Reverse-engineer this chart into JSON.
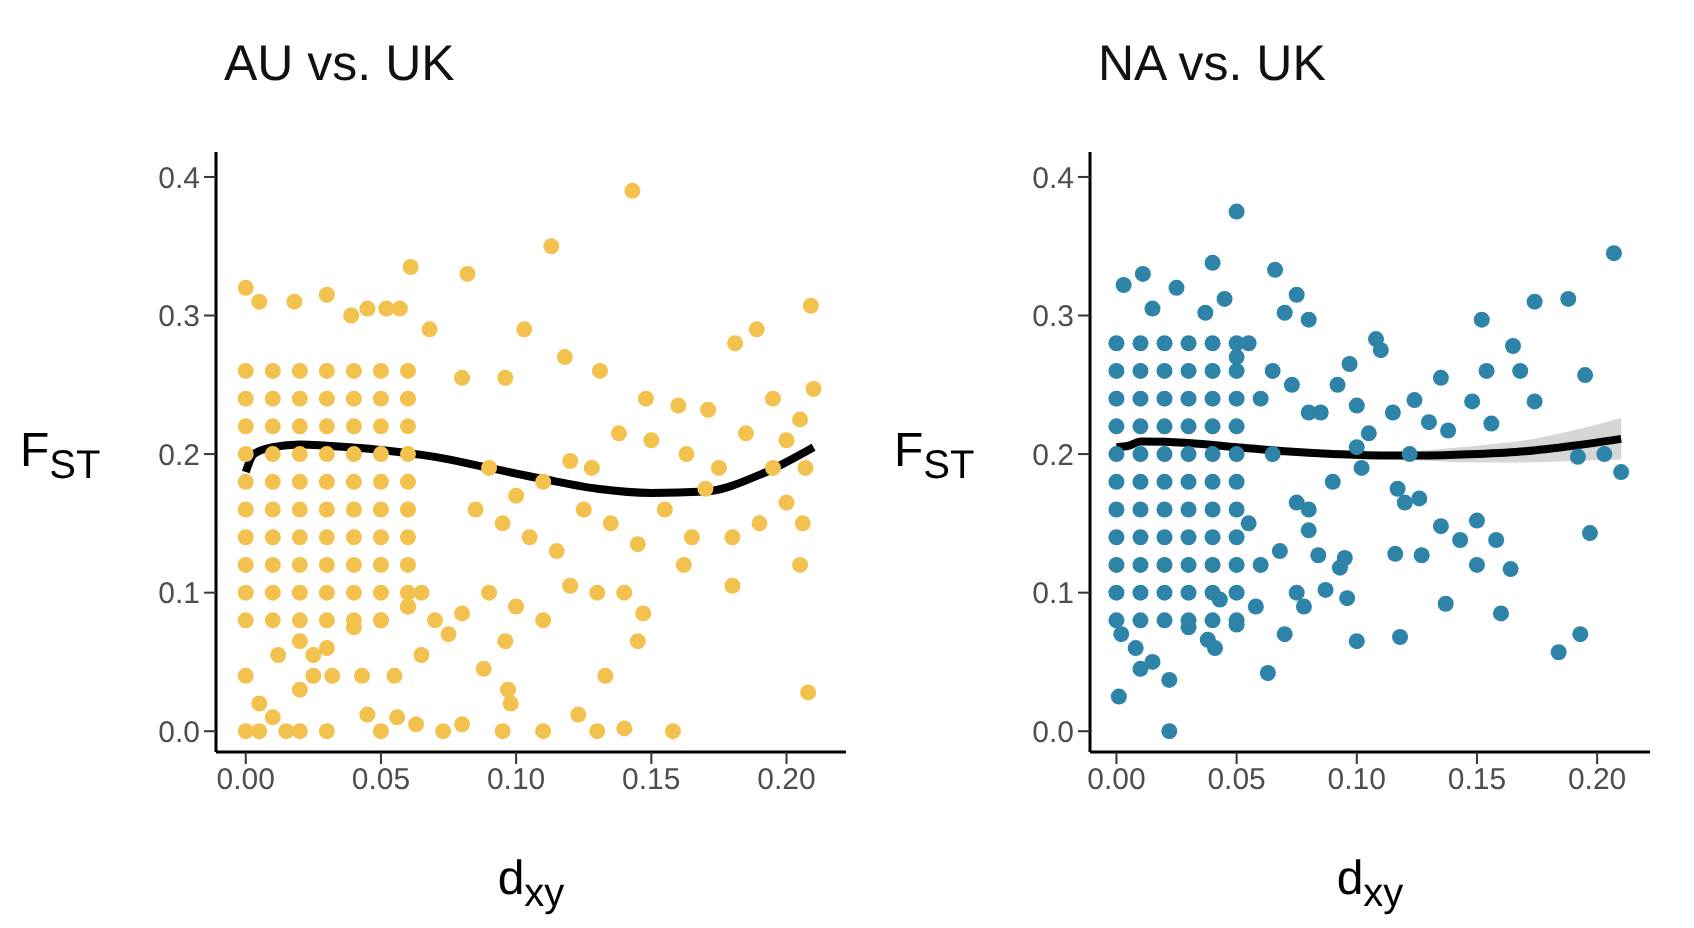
{
  "chart_data": [
    {
      "type": "scatter",
      "title": "AU vs. UK",
      "xlabel": "d$_{xy}$",
      "ylabel": "F$_{ST}$",
      "xlim": [
        -0.011,
        0.222
      ],
      "ylim": [
        -0.015,
        0.418
      ],
      "xticks": [
        {
          "value": 0,
          "label": "0.00"
        },
        {
          "value": 0.05,
          "label": "0.05"
        },
        {
          "value": 0.1,
          "label": "0.10"
        },
        {
          "value": 0.15,
          "label": "0.15"
        },
        {
          "value": 0.2,
          "label": "0.20"
        }
      ],
      "yticks": [
        {
          "value": 0,
          "label": "0.0"
        },
        {
          "value": 0.1,
          "label": "0.1"
        },
        {
          "value": 0.2,
          "label": "0.2"
        },
        {
          "value": 0.3,
          "label": "0.3"
        },
        {
          "value": 0.4,
          "label": "0.4"
        }
      ],
      "grid": false,
      "series": [
        {
          "marker": "circle",
          "color": "#f2c14e",
          "x": [
            0.143,
            0.113,
            0.082,
            0.061,
            0.0,
            0.03,
            0.005,
            0.018,
            0.045,
            0.052,
            0.057,
            0.039,
            0.209,
            0.103,
            0.189,
            0.181,
            0.118,
            0.068,
            0.08,
            0.096,
            0.131,
            0.148,
            0.16,
            0.171,
            0.195,
            0.21,
            0.185,
            0.2,
            0.205,
            0.195,
            0.175,
            0.163,
            0.15,
            0.138,
            0.128,
            0.12,
            0.11,
            0.1,
            0.09,
            0.085,
            0.095,
            0.105,
            0.115,
            0.125,
            0.135,
            0.145,
            0.155,
            0.165,
            0.17,
            0.18,
            0.19,
            0.2,
            0.207,
            0.206,
            0.205,
            0.18,
            0.162,
            0.147,
            0.145,
            0.14,
            0.13,
            0.12,
            0.11,
            0.1,
            0.09,
            0.08,
            0.075,
            0.065,
            0.07,
            0.096,
            0.088,
            0.097,
            0.098,
            0.133,
            0.123,
            0.14,
            0.158,
            0.208,
            0.13,
            0.11,
            0.095,
            0.08,
            0.073,
            0.063,
            0.056,
            0.05,
            0.045,
            0.043,
            0.055,
            0.032,
            0.025,
            0.0,
            0.005,
            0.01,
            0.015,
            0.02,
            0.03,
            0.005,
            0.0,
            0.02,
            0.025,
            0.012,
            0.02,
            0.03,
            0.04,
            0.05,
            0.06,
            0.065,
            0.0,
            0.0,
            0.0,
            0.0,
            0.0,
            0.0,
            0.0,
            0.0,
            0.0,
            0.0,
            0.01,
            0.01,
            0.01,
            0.01,
            0.01,
            0.01,
            0.01,
            0.01,
            0.01,
            0.01,
            0.02,
            0.02,
            0.02,
            0.02,
            0.02,
            0.02,
            0.02,
            0.02,
            0.02,
            0.02,
            0.03,
            0.03,
            0.03,
            0.03,
            0.03,
            0.03,
            0.03,
            0.03,
            0.03,
            0.03,
            0.04,
            0.04,
            0.04,
            0.04,
            0.04,
            0.04,
            0.04,
            0.04,
            0.04,
            0.04,
            0.05,
            0.05,
            0.05,
            0.05,
            0.05,
            0.05,
            0.05,
            0.05,
            0.05,
            0.05,
            0.06,
            0.06,
            0.06,
            0.06,
            0.06,
            0.06,
            0.06,
            0.06,
            0.06,
            0.06
          ],
          "values": [
            0.39,
            0.35,
            0.33,
            0.335,
            0.32,
            0.315,
            0.31,
            0.31,
            0.305,
            0.305,
            0.305,
            0.3,
            0.307,
            0.29,
            0.29,
            0.28,
            0.27,
            0.29,
            0.255,
            0.255,
            0.26,
            0.24,
            0.235,
            0.232,
            0.24,
            0.247,
            0.215,
            0.21,
            0.225,
            0.19,
            0.19,
            0.2,
            0.21,
            0.215,
            0.19,
            0.195,
            0.18,
            0.17,
            0.19,
            0.16,
            0.15,
            0.14,
            0.13,
            0.16,
            0.15,
            0.135,
            0.16,
            0.14,
            0.175,
            0.14,
            0.15,
            0.165,
            0.19,
            0.15,
            0.12,
            0.105,
            0.12,
            0.085,
            0.065,
            0.1,
            0.1,
            0.105,
            0.08,
            0.09,
            0.1,
            0.085,
            0.07,
            0.055,
            0.08,
            0.065,
            0.045,
            0.03,
            0.02,
            0.04,
            0.012,
            0.002,
            0.0,
            0.028,
            0.0,
            0.0,
            0.0,
            0.005,
            0.0,
            0.005,
            0.01,
            0.0,
            0.012,
            0.04,
            0.04,
            0.04,
            0.04,
            0.04,
            0.02,
            0.01,
            0.0,
            0.0,
            0.0,
            0.0,
            0.0,
            0.03,
            0.055,
            0.055,
            0.065,
            0.06,
            0.075,
            0.08,
            0.09,
            0.1,
            0.08,
            0.1,
            0.12,
            0.14,
            0.16,
            0.18,
            0.2,
            0.22,
            0.24,
            0.26,
            0.08,
            0.1,
            0.12,
            0.14,
            0.16,
            0.18,
            0.2,
            0.22,
            0.24,
            0.26,
            0.08,
            0.1,
            0.12,
            0.14,
            0.16,
            0.18,
            0.2,
            0.22,
            0.24,
            0.26,
            0.08,
            0.1,
            0.12,
            0.14,
            0.16,
            0.18,
            0.2,
            0.22,
            0.24,
            0.26,
            0.08,
            0.1,
            0.12,
            0.14,
            0.16,
            0.18,
            0.2,
            0.22,
            0.24,
            0.26,
            0.08,
            0.1,
            0.12,
            0.14,
            0.16,
            0.18,
            0.2,
            0.22,
            0.24,
            0.26,
            0.09,
            0.1,
            0.12,
            0.14,
            0.16,
            0.18,
            0.2,
            0.22,
            0.24,
            0.26
          ]
        },
        {
          "type": "line",
          "color": "#000000",
          "x": [
            0,
            0.003,
            0.01,
            0.02,
            0.03,
            0.05,
            0.07,
            0.09,
            0.11,
            0.13,
            0.15,
            0.17,
            0.19,
            0.21
          ],
          "values": [
            0.187,
            0.2,
            0.205,
            0.207,
            0.206,
            0.203,
            0.198,
            0.19,
            0.182,
            0.175,
            0.172,
            0.173,
            0.185,
            0.205
          ]
        }
      ]
    },
    {
      "type": "scatter",
      "title": "NA vs. UK",
      "xlabel": "d$_{xy}$",
      "ylabel": "F$_{ST}$",
      "xlim": [
        -0.011,
        0.222
      ],
      "ylim": [
        -0.015,
        0.418
      ],
      "xticks": [
        {
          "value": 0,
          "label": "0.00"
        },
        {
          "value": 0.05,
          "label": "0.05"
        },
        {
          "value": 0.1,
          "label": "0.10"
        },
        {
          "value": 0.15,
          "label": "0.15"
        },
        {
          "value": 0.2,
          "label": "0.20"
        }
      ],
      "yticks": [
        {
          "value": 0,
          "label": "0.0"
        },
        {
          "value": 0.1,
          "label": "0.1"
        },
        {
          "value": 0.2,
          "label": "0.2"
        },
        {
          "value": 0.3,
          "label": "0.3"
        },
        {
          "value": 0.4,
          "label": "0.4"
        }
      ],
      "grid": false,
      "series": [
        {
          "marker": "circle",
          "color": "#2e83a8",
          "x": [
            0.05,
            0.207,
            0.04,
            0.066,
            0.003,
            0.011,
            0.025,
            0.045,
            0.075,
            0.07,
            0.08,
            0.037,
            0.015,
            0.188,
            0.174,
            0.152,
            0.11,
            0.108,
            0.154,
            0.165,
            0.168,
            0.195,
            0.174,
            0.148,
            0.135,
            0.124,
            0.13,
            0.138,
            0.156,
            0.115,
            0.1,
            0.105,
            0.092,
            0.097,
            0.1,
            0.09,
            0.102,
            0.12,
            0.117,
            0.122,
            0.126,
            0.15,
            0.135,
            0.143,
            0.158,
            0.15,
            0.164,
            0.16,
            0.137,
            0.127,
            0.116,
            0.118,
            0.1,
            0.096,
            0.095,
            0.093,
            0.084,
            0.087,
            0.08,
            0.08,
            0.078,
            0.075,
            0.07,
            0.063,
            0.058,
            0.05,
            0.043,
            0.038,
            0.041,
            0.03,
            0.022,
            0.022,
            0.01,
            0.015,
            0.008,
            0.001,
            0.002,
            0.203,
            0.21,
            0.197,
            0.192,
            0.193,
            0.184,
            0.075,
            0.068,
            0.06,
            0.055,
            0.065,
            0.06,
            0.065,
            0.073,
            0.055,
            0.05,
            0.08,
            0.085,
            0.0,
            0.0,
            0.0,
            0.0,
            0.0,
            0.0,
            0.0,
            0.0,
            0.0,
            0.0,
            0.0,
            0.01,
            0.01,
            0.01,
            0.01,
            0.01,
            0.01,
            0.01,
            0.01,
            0.01,
            0.01,
            0.01,
            0.02,
            0.02,
            0.02,
            0.02,
            0.02,
            0.02,
            0.02,
            0.02,
            0.02,
            0.02,
            0.02,
            0.03,
            0.03,
            0.03,
            0.03,
            0.03,
            0.03,
            0.03,
            0.03,
            0.03,
            0.03,
            0.03,
            0.04,
            0.04,
            0.04,
            0.04,
            0.04,
            0.04,
            0.04,
            0.04,
            0.04,
            0.04,
            0.04,
            0.05,
            0.05,
            0.05,
            0.05,
            0.05,
            0.05,
            0.05,
            0.05,
            0.05,
            0.05,
            0.05
          ],
          "values": [
            0.375,
            0.345,
            0.338,
            0.333,
            0.322,
            0.33,
            0.32,
            0.312,
            0.315,
            0.302,
            0.297,
            0.302,
            0.305,
            0.312,
            0.31,
            0.297,
            0.275,
            0.283,
            0.26,
            0.278,
            0.26,
            0.257,
            0.238,
            0.238,
            0.255,
            0.239,
            0.223,
            0.217,
            0.222,
            0.23,
            0.235,
            0.215,
            0.25,
            0.265,
            0.205,
            0.18,
            0.19,
            0.165,
            0.175,
            0.2,
            0.168,
            0.152,
            0.148,
            0.138,
            0.138,
            0.12,
            0.117,
            0.085,
            0.092,
            0.127,
            0.128,
            0.068,
            0.065,
            0.096,
            0.125,
            0.118,
            0.127,
            0.102,
            0.145,
            0.16,
            0.09,
            0.1,
            0.07,
            0.042,
            0.09,
            0.077,
            0.095,
            0.066,
            0.06,
            0.075,
            0.037,
            0.0,
            0.045,
            0.05,
            0.06,
            0.025,
            0.07,
            0.2,
            0.187,
            0.143,
            0.198,
            0.07,
            0.057,
            0.165,
            0.13,
            0.12,
            0.15,
            0.2,
            0.24,
            0.26,
            0.25,
            0.28,
            0.27,
            0.23,
            0.23,
            0.08,
            0.1,
            0.12,
            0.14,
            0.16,
            0.18,
            0.2,
            0.22,
            0.24,
            0.26,
            0.28,
            0.08,
            0.1,
            0.12,
            0.14,
            0.16,
            0.18,
            0.2,
            0.22,
            0.24,
            0.26,
            0.28,
            0.08,
            0.1,
            0.12,
            0.14,
            0.16,
            0.18,
            0.2,
            0.22,
            0.24,
            0.26,
            0.28,
            0.08,
            0.1,
            0.12,
            0.14,
            0.16,
            0.18,
            0.2,
            0.22,
            0.24,
            0.26,
            0.28,
            0.08,
            0.1,
            0.12,
            0.14,
            0.16,
            0.18,
            0.2,
            0.22,
            0.24,
            0.26,
            0.28,
            0.08,
            0.1,
            0.12,
            0.14,
            0.16,
            0.18,
            0.2,
            0.22,
            0.24,
            0.26,
            0.28
          ]
        },
        {
          "type": "line",
          "color": "#000000",
          "x": [
            0,
            0.005,
            0.01,
            0.03,
            0.05,
            0.07,
            0.09,
            0.11,
            0.13,
            0.15,
            0.17,
            0.19,
            0.21
          ],
          "values": [
            0.205,
            0.206,
            0.209,
            0.208,
            0.205,
            0.202,
            0.2,
            0.199,
            0.199,
            0.2,
            0.202,
            0.206,
            0.211
          ],
          "lower": [
            0.203,
            0.204,
            0.207,
            0.206,
            0.203,
            0.2,
            0.198,
            0.197,
            0.195,
            0.194,
            0.194,
            0.195,
            0.196
          ],
          "upper": [
            0.207,
            0.208,
            0.211,
            0.21,
            0.207,
            0.204,
            0.202,
            0.201,
            0.203,
            0.206,
            0.21,
            0.217,
            0.226
          ]
        }
      ]
    }
  ]
}
